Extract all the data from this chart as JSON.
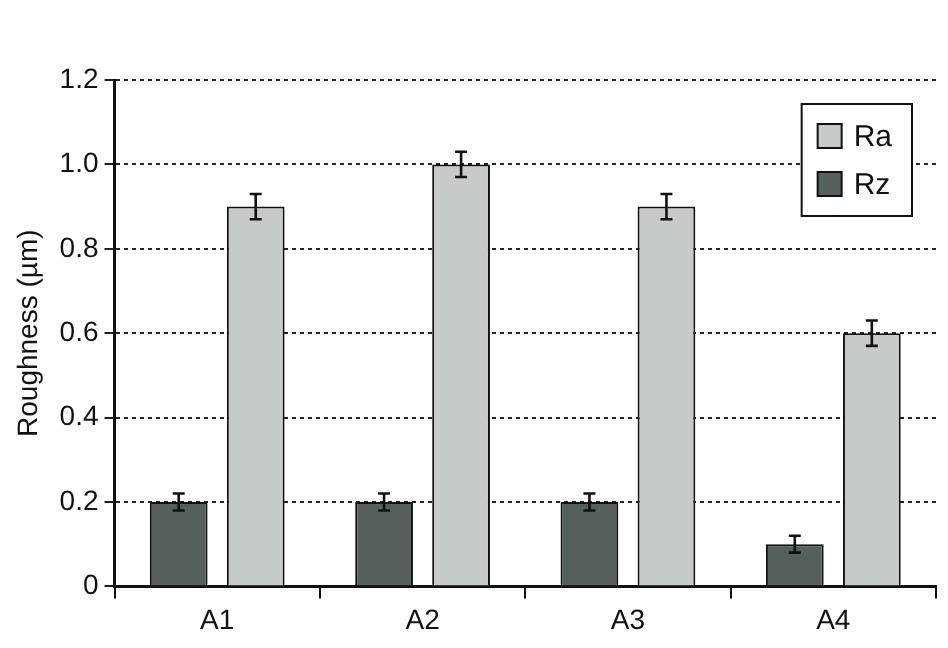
{
  "chart_data": {
    "type": "bar",
    "ylabel": "Roughness (µm)",
    "categories": [
      "A1",
      "A2",
      "A3",
      "A4"
    ],
    "series": [
      {
        "name": "Rz",
        "color": "#555f5c",
        "values": [
          0.2,
          0.2,
          0.2,
          0.1
        ],
        "errors": [
          0.02,
          0.02,
          0.02,
          0.02
        ]
      },
      {
        "name": "Ra",
        "color": "#c5cbc8",
        "values": [
          0.9,
          1.0,
          0.9,
          0.6
        ],
        "errors": [
          0.03,
          0.03,
          0.03,
          0.03
        ]
      }
    ],
    "ylim": [
      0,
      1.2
    ],
    "yticks": [
      0,
      {
        "value": 0.2,
        "label": "0.2"
      },
      {
        "value": 0.4,
        "label": "0.4"
      },
      {
        "value": 0.6,
        "label": "0.6"
      },
      {
        "value": 0.8,
        "label": "0.8"
      },
      {
        "value": 1.0,
        "label": "1.0"
      },
      {
        "value": 1.2,
        "label": "1.2"
      }
    ],
    "grid": "y",
    "legend": "top right"
  }
}
